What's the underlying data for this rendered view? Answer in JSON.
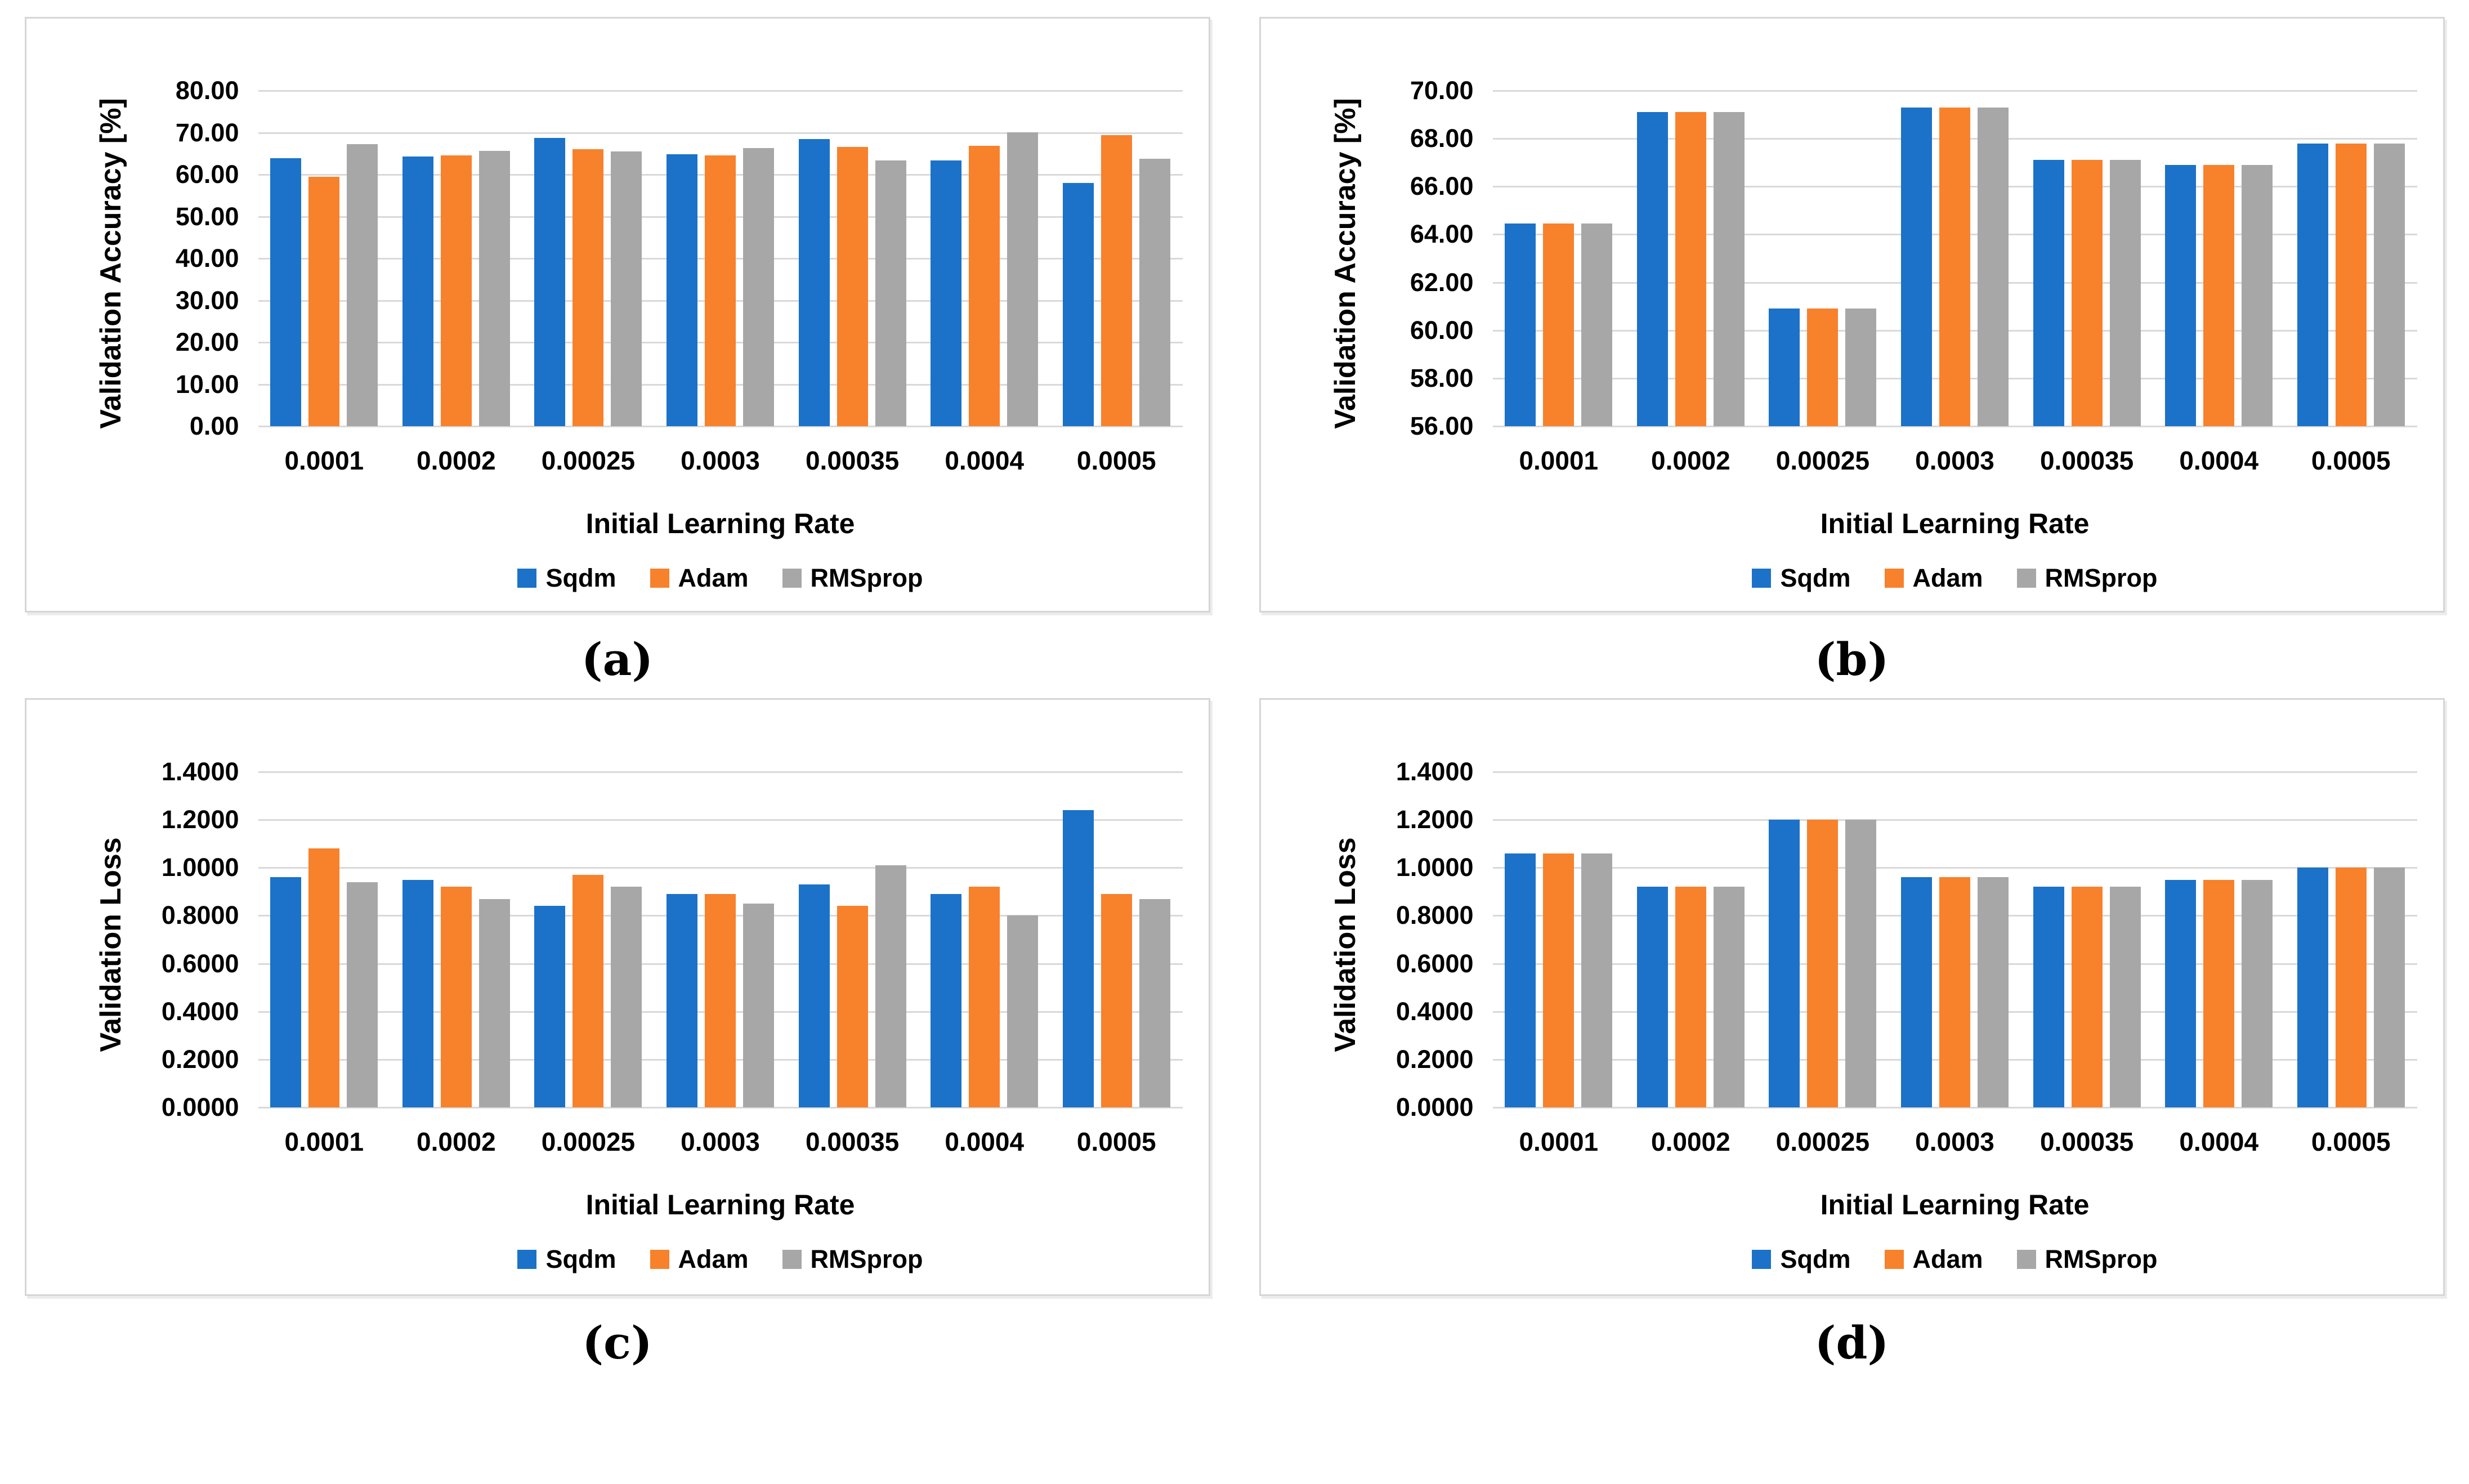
{
  "page": {
    "background": "#ffffff"
  },
  "colors": {
    "series": [
      "#1b72c8",
      "#f8812c",
      "#a7a7a7"
    ],
    "gridline": "#d9d9d9",
    "box_border": "#d6d6d6",
    "text": "#000000"
  },
  "legend": {
    "items": [
      "Sqdm",
      "Adam",
      "RMSprop"
    ]
  },
  "chart_data": [
    {
      "id": "a",
      "type": "bar",
      "caption": "(a)",
      "ylabel": "Validation Accuracy  [%]",
      "xlabel": "Initial Learning Rate",
      "ylim": [
        0,
        80
      ],
      "yticks": [
        "80.00",
        "70.00",
        "60.00",
        "50.00",
        "40.00",
        "30.00",
        "20.00",
        "10.00",
        "0.00"
      ],
      "categories": [
        "0.0001",
        "0.0002",
        "0.00025",
        "0.0003",
        "0.00035",
        "0.0004",
        "0.0005"
      ],
      "series": [
        {
          "name": "Sqdm",
          "values": [
            63.9,
            64.3,
            68.7,
            64.8,
            68.4,
            63.3,
            58.0
          ]
        },
        {
          "name": "Adam",
          "values": [
            59.4,
            64.6,
            66.0,
            64.6,
            66.6,
            66.8,
            69.4
          ]
        },
        {
          "name": "RMSprop",
          "values": [
            67.2,
            65.7,
            65.5,
            66.3,
            63.4,
            70.1,
            63.8
          ]
        }
      ],
      "grid": true,
      "legend_position": "bottom"
    },
    {
      "id": "b",
      "type": "bar",
      "caption": "(b)",
      "ylabel": "Validation Accuracy [%]",
      "xlabel": "Initial Learning Rate",
      "ylim": [
        56,
        70
      ],
      "yticks": [
        "70.00",
        "68.00",
        "66.00",
        "64.00",
        "62.00",
        "60.00",
        "58.00",
        "56.00"
      ],
      "categories": [
        "0.0001",
        "0.0002",
        "0.00025",
        "0.0003",
        "0.00035",
        "0.0004",
        "0.0005"
      ],
      "series": [
        {
          "name": "Sqdm",
          "values": [
            64.45,
            69.1,
            60.9,
            69.3,
            67.1,
            66.9,
            67.8
          ]
        },
        {
          "name": "Adam",
          "values": [
            64.45,
            69.1,
            60.9,
            69.3,
            67.1,
            66.9,
            67.8
          ]
        },
        {
          "name": "RMSprop",
          "values": [
            64.45,
            69.1,
            60.9,
            69.3,
            67.1,
            66.9,
            67.8
          ]
        }
      ],
      "grid": true,
      "legend_position": "bottom"
    },
    {
      "id": "c",
      "type": "bar",
      "caption": "(c)",
      "ylabel": "Validation Loss",
      "xlabel": "Initial Learning Rate",
      "ylim": [
        0,
        1.4
      ],
      "yticks": [
        "1.4000",
        "1.2000",
        "1.0000",
        "0.8000",
        "0.6000",
        "0.4000",
        "0.2000",
        "0.0000"
      ],
      "categories": [
        "0.0001",
        "0.0002",
        "0.00025",
        "0.0003",
        "0.00035",
        "0.0004",
        "0.0005"
      ],
      "series": [
        {
          "name": "Sqdm",
          "values": [
            0.96,
            0.95,
            0.84,
            0.89,
            0.93,
            0.89,
            1.24
          ]
        },
        {
          "name": "Adam",
          "values": [
            1.08,
            0.92,
            0.97,
            0.89,
            0.84,
            0.92,
            0.89
          ]
        },
        {
          "name": "RMSprop",
          "values": [
            0.94,
            0.87,
            0.92,
            0.85,
            1.01,
            0.8,
            0.87
          ]
        }
      ],
      "grid": true,
      "legend_position": "bottom"
    },
    {
      "id": "d",
      "type": "bar",
      "caption": "(d)",
      "ylabel": "Validation Loss",
      "xlabel": "Initial Learning Rate",
      "ylim": [
        0,
        1.4
      ],
      "yticks": [
        "1.4000",
        "1.2000",
        "1.0000",
        "0.8000",
        "0.6000",
        "0.4000",
        "0.2000",
        "0.0000"
      ],
      "categories": [
        "0.0001",
        "0.0002",
        "0.00025",
        "0.0003",
        "0.00035",
        "0.0004",
        "0.0005"
      ],
      "series": [
        {
          "name": "Sqdm",
          "values": [
            1.06,
            0.92,
            1.2,
            0.96,
            0.92,
            0.95,
            1.0
          ]
        },
        {
          "name": "Adam",
          "values": [
            1.06,
            0.92,
            1.2,
            0.96,
            0.92,
            0.95,
            1.0
          ]
        },
        {
          "name": "RMSprop",
          "values": [
            1.06,
            0.92,
            1.2,
            0.96,
            0.92,
            0.95,
            1.0
          ]
        }
      ],
      "grid": true,
      "legend_position": "bottom"
    }
  ]
}
